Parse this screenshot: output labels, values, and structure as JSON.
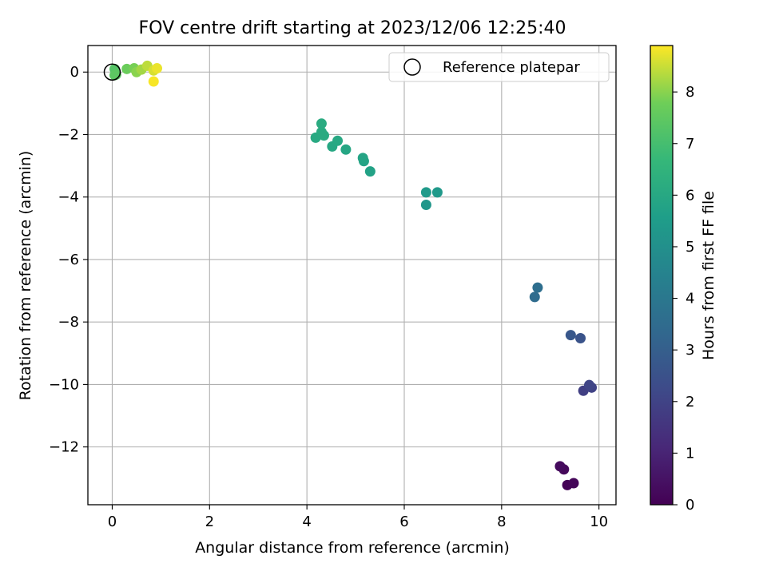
{
  "chart_data": {
    "type": "scatter",
    "title": "FOV centre drift starting at 2023/12/06 12:25:40",
    "xlabel": "Angular distance from reference (arcmin)",
    "ylabel": "Rotation from reference (arcmin)",
    "xlim": [
      -0.5,
      10.35
    ],
    "ylim": [
      -13.85,
      0.85
    ],
    "xticks": [
      "0",
      "2",
      "4",
      "6",
      "8",
      "10"
    ],
    "yticks": [
      "0",
      "−2",
      "−4",
      "−6",
      "−8",
      "−10",
      "−12"
    ],
    "grid": true,
    "legend": {
      "position": "top-right",
      "label": "Reference platepar"
    },
    "colorbar": {
      "label": "Hours from first FF file",
      "colormap": "viridis",
      "range": [
        0,
        8.9
      ],
      "ticks": [
        "0",
        "1",
        "2",
        "3",
        "4",
        "5",
        "6",
        "7",
        "8"
      ]
    },
    "reference_point": {
      "x": 0,
      "y": 0
    },
    "points": [
      {
        "x": 9.35,
        "y": -13.22,
        "hours": 0.05
      },
      {
        "x": 9.48,
        "y": -13.16,
        "hours": 0.12
      },
      {
        "x": 9.28,
        "y": -12.72,
        "hours": 0.2
      },
      {
        "x": 9.2,
        "y": -12.62,
        "hours": 0.28
      },
      {
        "x": 9.68,
        "y": -10.2,
        "hours": 1.85
      },
      {
        "x": 9.85,
        "y": -10.1,
        "hours": 1.95
      },
      {
        "x": 9.8,
        "y": -10.02,
        "hours": 2.05
      },
      {
        "x": 9.62,
        "y": -8.52,
        "hours": 2.55
      },
      {
        "x": 9.42,
        "y": -8.42,
        "hours": 2.7
      },
      {
        "x": 8.68,
        "y": -7.2,
        "hours": 3.5
      },
      {
        "x": 8.74,
        "y": -6.9,
        "hours": 3.6
      },
      {
        "x": 6.45,
        "y": -4.25,
        "hours": 5.25
      },
      {
        "x": 6.68,
        "y": -3.85,
        "hours": 5.35
      },
      {
        "x": 6.45,
        "y": -3.85,
        "hours": 5.4
      },
      {
        "x": 5.3,
        "y": -3.18,
        "hours": 5.75
      },
      {
        "x": 5.17,
        "y": -2.85,
        "hours": 5.8
      },
      {
        "x": 5.15,
        "y": -2.75,
        "hours": 5.85
      },
      {
        "x": 4.8,
        "y": -2.48,
        "hours": 5.9
      },
      {
        "x": 4.52,
        "y": -2.38,
        "hours": 5.95
      },
      {
        "x": 4.63,
        "y": -2.2,
        "hours": 6.0
      },
      {
        "x": 4.18,
        "y": -2.1,
        "hours": 6.05
      },
      {
        "x": 4.35,
        "y": -2.03,
        "hours": 6.1
      },
      {
        "x": 4.3,
        "y": -1.92,
        "hours": 6.1
      },
      {
        "x": 4.3,
        "y": -1.65,
        "hours": 6.15
      },
      {
        "x": 0.05,
        "y": 0.1,
        "hours": 7.3
      },
      {
        "x": 0.08,
        "y": -0.08,
        "hours": 7.4
      },
      {
        "x": 0.05,
        "y": -0.1,
        "hours": 7.45
      },
      {
        "x": 0.3,
        "y": 0.1,
        "hours": 7.7
      },
      {
        "x": 0.45,
        "y": 0.12,
        "hours": 7.85
      },
      {
        "x": 0.5,
        "y": 0.0,
        "hours": 8.0
      },
      {
        "x": 0.6,
        "y": 0.08,
        "hours": 8.2
      },
      {
        "x": 0.72,
        "y": 0.2,
        "hours": 8.4
      },
      {
        "x": 0.85,
        "y": 0.05,
        "hours": 8.6
      },
      {
        "x": 0.92,
        "y": 0.12,
        "hours": 8.75
      },
      {
        "x": 0.85,
        "y": -0.3,
        "hours": 8.85
      }
    ]
  }
}
